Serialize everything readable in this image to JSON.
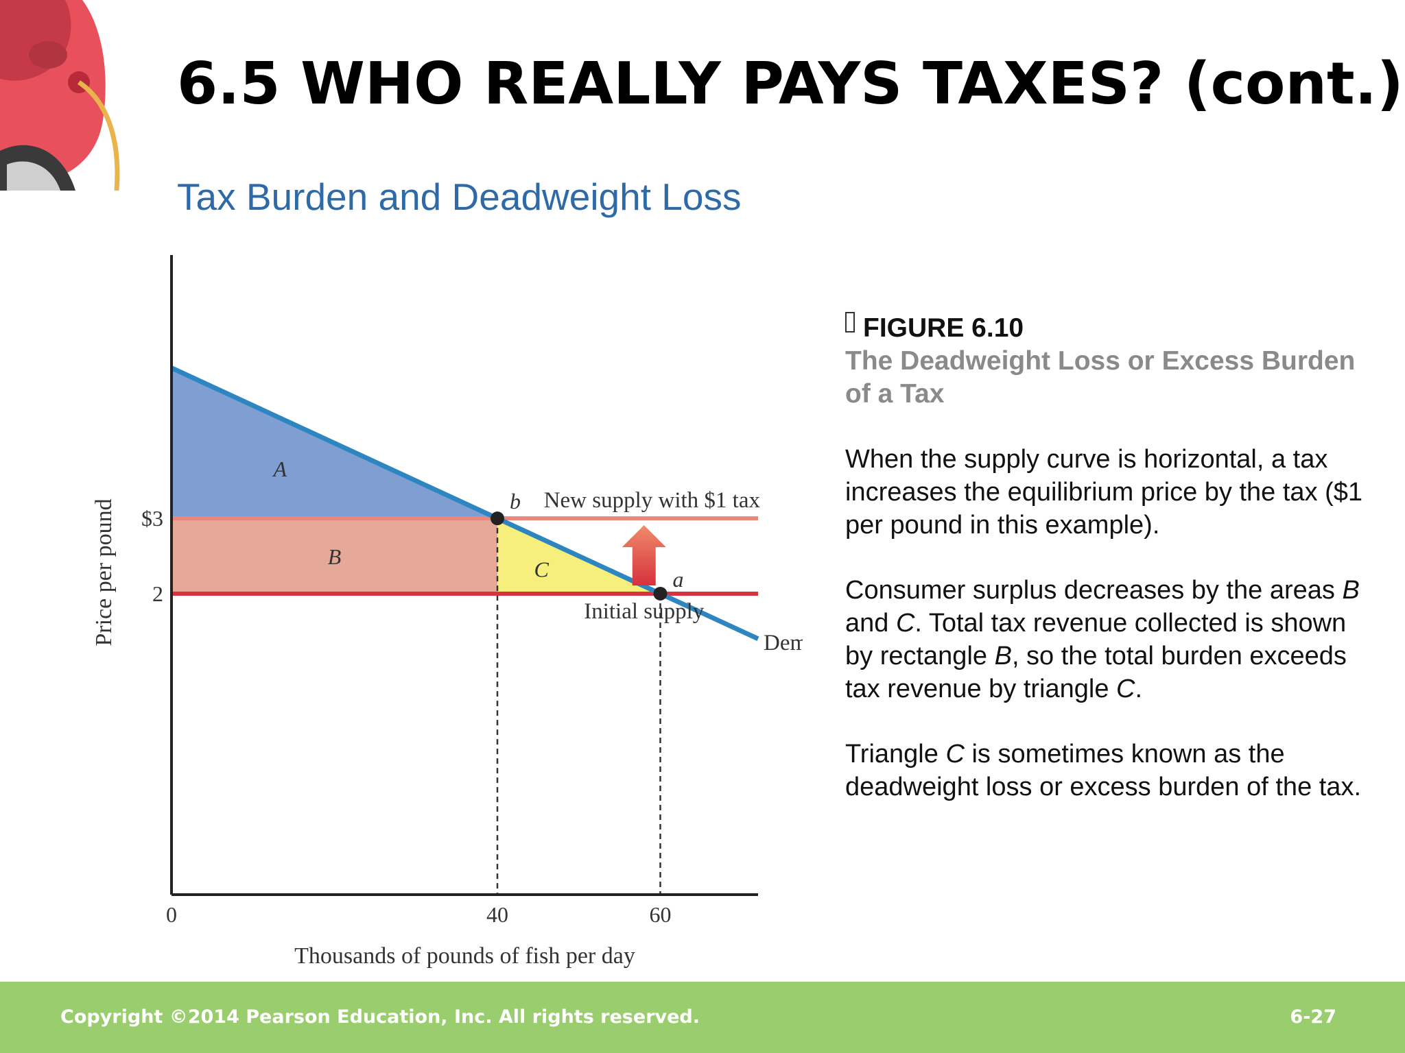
{
  "slide": {
    "title": "6.5 WHO REALLY PAYS TAXES? (cont.)",
    "subtitle": "Tax Burden and Deadweight Loss"
  },
  "figure": {
    "label": "FIGURE 6.10",
    "caption": "The Deadweight Loss or Excess Burden of a Tax",
    "paragraphs": [
      [
        {
          "t": "When the supply curve is horizontal, a tax increases the equilibrium price by the tax ($1 per pound in this example)."
        }
      ],
      [
        {
          "t": "Consumer surplus decreases by the areas "
        },
        {
          "t": "B",
          "i": true
        },
        {
          "t": " and "
        },
        {
          "t": "C",
          "i": true
        },
        {
          "t": ". Total tax revenue collected is shown by rectangle "
        },
        {
          "t": "B",
          "i": true
        },
        {
          "t": ", so the total burden exceeds tax revenue by triangle "
        },
        {
          "t": "C",
          "i": true
        },
        {
          "t": "."
        }
      ],
      [
        {
          "t": "Triangle "
        },
        {
          "t": "C",
          "i": true
        },
        {
          "t": " is sometimes known as the deadweight loss or excess burden of the tax."
        }
      ]
    ]
  },
  "footer": {
    "copyright": "Copyright ©2014 Pearson Education, Inc. All rights reserved.",
    "page": "6-27"
  },
  "colors": {
    "demand": "#2e86c1",
    "initial_supply": "#d7323e",
    "new_supply": "#e8877c",
    "area_a": "#7f9fd3",
    "area_b": "#e6a899",
    "area_c": "#f7ef7c",
    "subtitle": "#2e6aa8",
    "footer": "#9acd6e"
  },
  "chart_data": {
    "type": "line",
    "title": "",
    "xlabel": "Thousands of pounds of fish per day",
    "ylabel": "Price per pound",
    "xlim": [
      0,
      72
    ],
    "ylim": [
      -2,
      6.5
    ],
    "x_ticks": [
      {
        "value": 0,
        "label": "0"
      },
      {
        "value": 40,
        "label": "40"
      },
      {
        "value": 60,
        "label": "60"
      }
    ],
    "y_ticks": [
      {
        "value": 2,
        "label": "2"
      },
      {
        "value": 3,
        "label": "$3"
      }
    ],
    "series": [
      {
        "name": "Demand",
        "kind": "line",
        "points": [
          [
            0,
            5
          ],
          [
            60,
            2
          ]
        ],
        "extend_to_x": 72
      },
      {
        "name": "New supply with $1 tax",
        "kind": "horizontal",
        "y": 3
      },
      {
        "name": "Initial supply",
        "kind": "horizontal",
        "y": 2
      }
    ],
    "areas": [
      {
        "label": "A",
        "polygon": [
          [
            0,
            5
          ],
          [
            40,
            3
          ],
          [
            0,
            3
          ]
        ]
      },
      {
        "label": "B",
        "polygon": [
          [
            0,
            3
          ],
          [
            40,
            3
          ],
          [
            40,
            2
          ],
          [
            0,
            2
          ]
        ]
      },
      {
        "label": "C",
        "polygon": [
          [
            40,
            3
          ],
          [
            60,
            2
          ],
          [
            40,
            2
          ]
        ]
      }
    ],
    "points": [
      {
        "label": "b",
        "x": 40,
        "y": 3
      },
      {
        "label": "a",
        "x": 60,
        "y": 2
      }
    ],
    "annotations": [
      {
        "text": "tax arrow",
        "from_y": 2,
        "to_y": 3,
        "x": 58
      }
    ],
    "grid": false,
    "legend": "none"
  }
}
